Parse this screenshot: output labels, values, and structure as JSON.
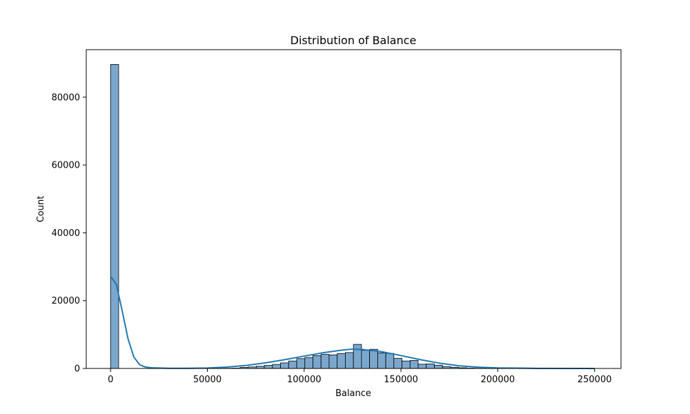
{
  "chart_data": {
    "type": "bar",
    "title": "Distribution of Balance",
    "xlabel": "Balance",
    "ylabel": "Count",
    "xlim": [
      -12555,
      263653
    ],
    "ylim": [
      0,
      94000
    ],
    "xticks": [
      0,
      50000,
      100000,
      150000,
      200000,
      250000
    ],
    "xtick_labels": [
      "0",
      "50000",
      "100000",
      "150000",
      "200000",
      "250000"
    ],
    "yticks": [
      0,
      20000,
      40000,
      60000,
      80000
    ],
    "ytick_labels": [
      "0",
      "20000",
      "40000",
      "60000",
      "80000"
    ],
    "bin_width": 4181,
    "bin_start": 0,
    "counts": [
      89650,
      0,
      0,
      0,
      0,
      0,
      0,
      0,
      0,
      0,
      0,
      0,
      0,
      20,
      60,
      100,
      300,
      450,
      650,
      900,
      1200,
      1650,
      2200,
      2900,
      3250,
      3800,
      4150,
      4000,
      4400,
      4700,
      7100,
      5350,
      5650,
      4600,
      4450,
      3000,
      2200,
      2350,
      1250,
      1350,
      950,
      550,
      350,
      200,
      100,
      60,
      30,
      20,
      10,
      5,
      5,
      0,
      0,
      0,
      0,
      0,
      0,
      0,
      0,
      3
    ],
    "kde": {
      "x": [
        0,
        3000,
        6000,
        9000,
        12000,
        15000,
        18000,
        21000,
        25000,
        30000,
        40000,
        50000,
        60000,
        70000,
        80000,
        90000,
        100000,
        110000,
        120000,
        125000,
        130000,
        140000,
        150000,
        160000,
        170000,
        180000,
        190000,
        200000,
        220000,
        250000
      ],
      "y": [
        27200,
        24800,
        17000,
        8800,
        3400,
        1100,
        400,
        200,
        120,
        60,
        40,
        120,
        400,
        900,
        1650,
        2600,
        3650,
        4650,
        5450,
        5700,
        5600,
        4950,
        3800,
        2600,
        1550,
        800,
        380,
        160,
        30,
        5
      ]
    },
    "colors": {
      "bar_fill": "#7ba7cd",
      "bar_edge": "#000000",
      "kde_line": "#1f77b4"
    },
    "grid": false,
    "legend": "none"
  }
}
